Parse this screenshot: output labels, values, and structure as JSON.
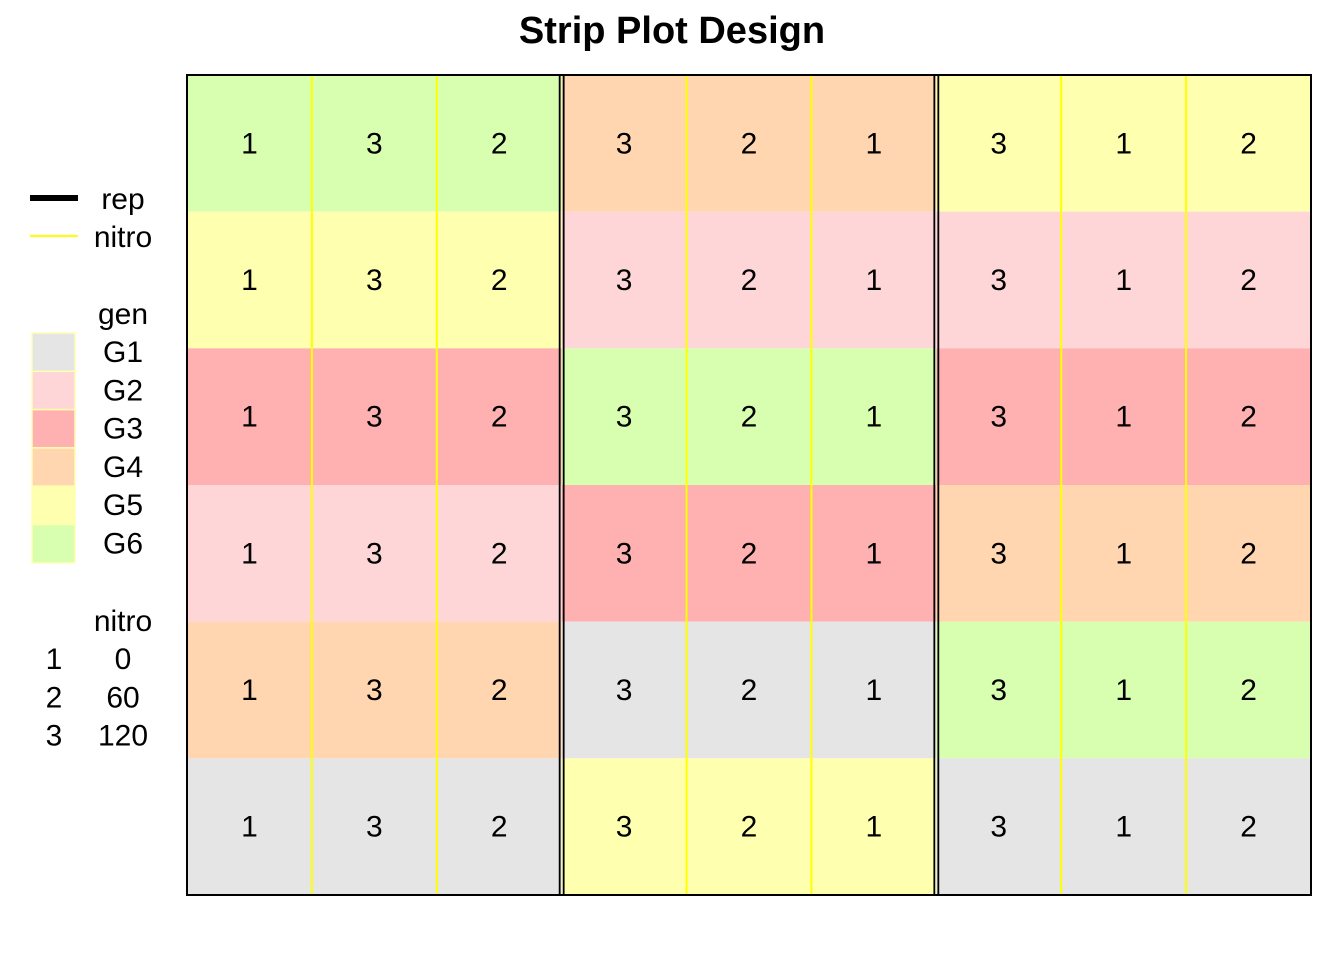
{
  "title": "Strip Plot Design",
  "legend": {
    "lines": [
      {
        "label": "rep",
        "color": "#000000",
        "style": "thick"
      },
      {
        "label": "nitro",
        "color": "#ffff00",
        "style": "thin"
      }
    ],
    "gen_title": "gen",
    "gen_items": [
      {
        "label": "G1",
        "color": "#e5e5e5"
      },
      {
        "label": "G2",
        "color": "#ffd6d8"
      },
      {
        "label": "G3",
        "color": "#ffb0b0"
      },
      {
        "label": "G4",
        "color": "#ffd6b0"
      },
      {
        "label": "G5",
        "color": "#ffffb0"
      },
      {
        "label": "G6",
        "color": "#d8ffb0"
      }
    ],
    "nitro_title": "nitro",
    "nitro_levels": [
      {
        "code": "1",
        "value": "0"
      },
      {
        "code": "2",
        "value": "60"
      },
      {
        "code": "3",
        "value": "120"
      }
    ]
  },
  "chart_data": {
    "type": "heatmap",
    "title": "Strip Plot Design",
    "reps": 3,
    "rows": 6,
    "nitro_per_rep": 3,
    "rep_nitro_order": [
      [
        "1",
        "3",
        "2"
      ],
      [
        "3",
        "2",
        "1"
      ],
      [
        "3",
        "1",
        "2"
      ]
    ],
    "gen_by_rep": [
      [
        "G6",
        "G5",
        "G3",
        "G2",
        "G4",
        "G1"
      ],
      [
        "G4",
        "G2",
        "G6",
        "G3",
        "G1",
        "G5"
      ],
      [
        "G5",
        "G2",
        "G3",
        "G4",
        "G6",
        "G1"
      ]
    ]
  }
}
